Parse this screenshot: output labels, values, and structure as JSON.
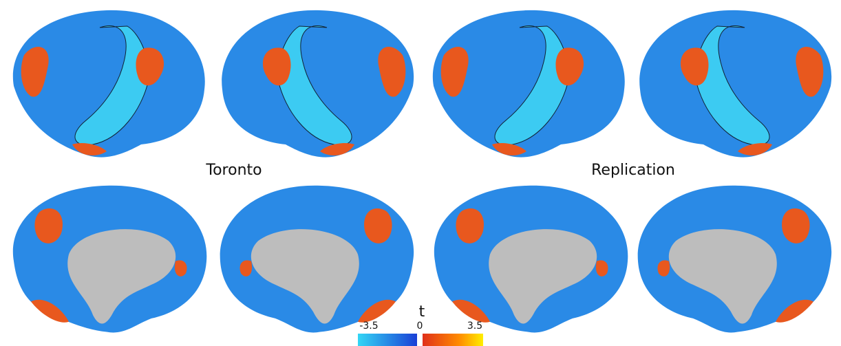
{
  "labels": {
    "left_group": "Toronto",
    "right_group": "Replication"
  },
  "colorbar": {
    "title": "t",
    "tick_labels": [
      "-3.5",
      "0",
      "3.5"
    ]
  }
}
